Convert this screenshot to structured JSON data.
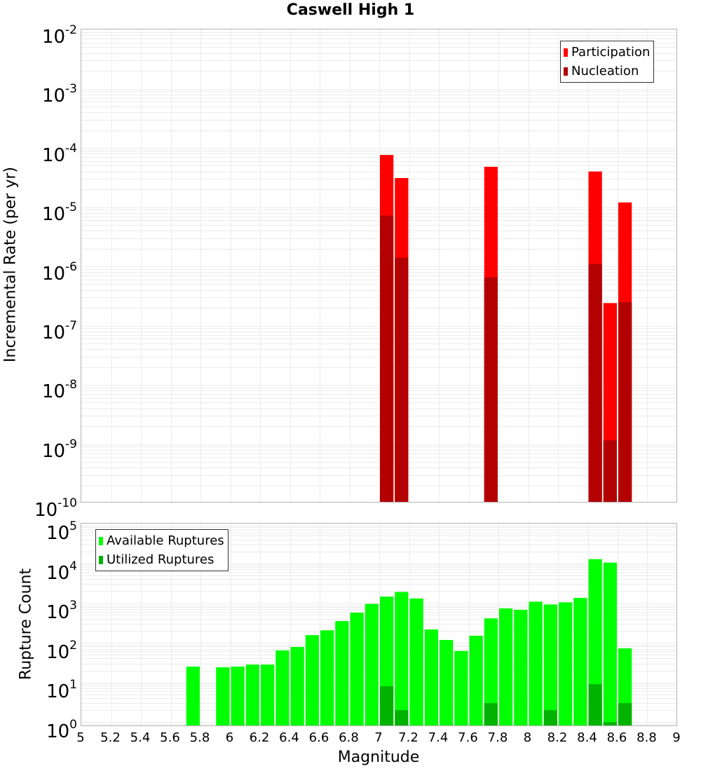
{
  "title": "Caswell High 1",
  "top_plot": {
    "ylabel": "Incremental Rate (per yr)",
    "y_ticks": [
      {
        "base": "10",
        "exp": "-2"
      },
      {
        "base": "10",
        "exp": "-3"
      },
      {
        "base": "10",
        "exp": "-4"
      },
      {
        "base": "10",
        "exp": "-5"
      },
      {
        "base": "10",
        "exp": "-6"
      },
      {
        "base": "10",
        "exp": "-7"
      },
      {
        "base": "10",
        "exp": "-8"
      },
      {
        "base": "10",
        "exp": "-9"
      },
      {
        "base": "10",
        "exp": "-10"
      }
    ],
    "legend": {
      "participation": "Participation",
      "nucleation": "Nucleation"
    }
  },
  "bottom_plot": {
    "ylabel": "Rupture Count",
    "y_ticks": [
      {
        "base": "10",
        "exp": "5"
      },
      {
        "base": "10",
        "exp": "4"
      },
      {
        "base": "10",
        "exp": "3"
      },
      {
        "base": "10",
        "exp": "2"
      },
      {
        "base": "10",
        "exp": "1"
      },
      {
        "base": "10",
        "exp": "0"
      }
    ],
    "legend": {
      "available": "Available Ruptures",
      "utilized": "Utilized Ruptures"
    }
  },
  "xlabel": "Magnitude",
  "x_ticks": [
    "5",
    "5.2",
    "5.4",
    "5.6",
    "5.8",
    "6",
    "6.2",
    "6.4",
    "6.6",
    "6.8",
    "7",
    "7.2",
    "7.4",
    "7.6",
    "7.8",
    "8",
    "8.2",
    "8.4",
    "8.6",
    "8.8",
    "9"
  ],
  "colors": {
    "participation": "#ff0000",
    "nucleation": "#b30000",
    "available": "#00ff00",
    "utilized": "#00b300",
    "grid": "#ebebeb",
    "frame": "#b3b3b3"
  },
  "chart_data": [
    {
      "type": "bar",
      "title": "Caswell High 1",
      "xlabel": "Magnitude",
      "ylabel": "Incremental Rate (per yr)",
      "yscale": "log",
      "xlim": [
        5,
        9
      ],
      "ylim": [
        1e-10,
        0.01
      ],
      "grid": true,
      "legend_position": "upper right",
      "x": [
        7.05,
        7.15,
        7.75,
        8.45,
        8.55,
        8.65
      ],
      "series": [
        {
          "name": "Participation",
          "values": [
            7.6e-05,
            3.1e-05,
            4.8e-05,
            4e-05,
            2.4e-07,
            1.2e-05
          ]
        },
        {
          "name": "Nucleation",
          "values": [
            7.2e-06,
            1.4e-06,
            6.5e-07,
            1.1e-06,
            1.15e-09,
            2.5e-07
          ]
        }
      ]
    },
    {
      "type": "bar",
      "title": "",
      "xlabel": "Magnitude",
      "ylabel": "Rupture Count",
      "yscale": "log",
      "xlim": [
        5,
        9
      ],
      "ylim": [
        0.75,
        100000.0
      ],
      "grid": true,
      "legend_position": "upper left",
      "x": [
        5.75,
        5.95,
        6.05,
        6.15,
        6.25,
        6.35,
        6.45,
        6.55,
        6.65,
        6.75,
        6.85,
        6.95,
        7.05,
        7.15,
        7.25,
        7.35,
        7.45,
        7.55,
        7.65,
        7.75,
        7.85,
        7.95,
        8.05,
        8.15,
        8.25,
        8.35,
        8.45,
        8.55,
        8.65
      ],
      "series": [
        {
          "name": "Available Ruptures",
          "values": [
            25,
            24,
            25,
            28,
            28,
            64,
            78,
            155,
            205,
            350,
            570,
            950,
            1450,
            1900,
            1300,
            215,
            117,
            62,
            150,
            410,
            730,
            670,
            1080,
            920,
            1040,
            1340,
            12700,
            10400,
            72
          ]
        },
        {
          "name": "Utilized Ruptures",
          "values": [
            0,
            0,
            0,
            0,
            0,
            0,
            0,
            0,
            0,
            0,
            0,
            0,
            8,
            2,
            0,
            0,
            0,
            0,
            0,
            3,
            0,
            0,
            0,
            2,
            0,
            0,
            9,
            1,
            3
          ]
        }
      ]
    }
  ]
}
